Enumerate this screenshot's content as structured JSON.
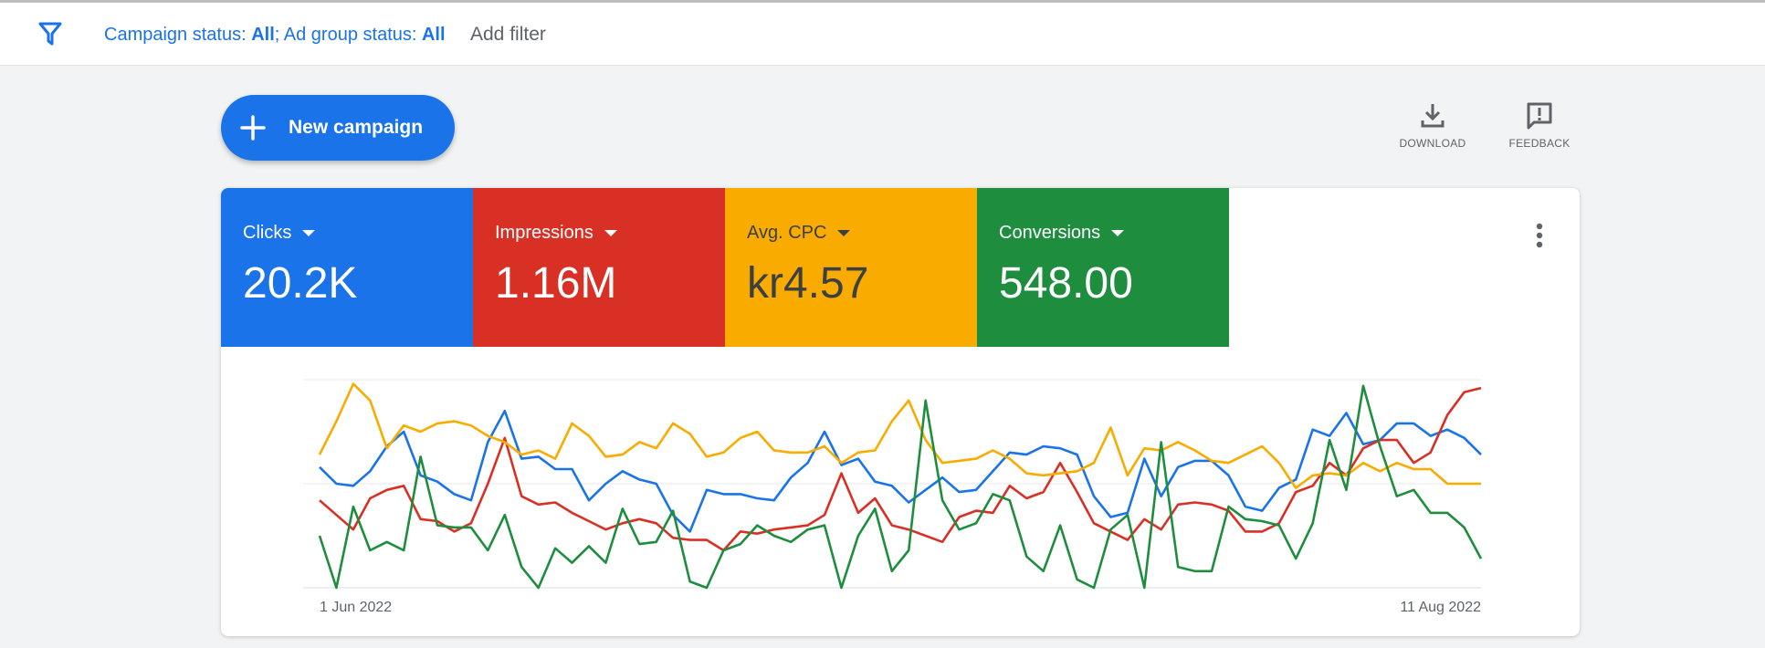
{
  "filter_bar": {
    "icon": "filter-icon",
    "campaign_status_label": "Campaign status: ",
    "campaign_status_value": "All",
    "separator": "; ",
    "ad_group_status_label": "Ad group status: ",
    "ad_group_status_value": "All",
    "add_filter": "Add filter"
  },
  "toolbar": {
    "new_campaign_label": "New campaign",
    "download_label": "DOWNLOAD",
    "feedback_label": "FEEDBACK"
  },
  "metrics": [
    {
      "label": "Clicks",
      "value": "20.2K",
      "color": "#1a73e8"
    },
    {
      "label": "Impressions",
      "value": "1.16M",
      "color": "#d93025"
    },
    {
      "label": "Avg. CPC",
      "value": "kr4.57",
      "color": "#f9ab00"
    },
    {
      "label": "Conversions",
      "value": "548.00",
      "color": "#1e8e3e"
    }
  ],
  "chart_data": {
    "type": "line",
    "x_start_label": "1 Jun 2022",
    "x_end_label": "11 Aug 2022",
    "grid": true,
    "y_normalized": true,
    "series": [
      {
        "color": "#1a73e8",
        "values": [
          0.58,
          0.5,
          0.49,
          0.56,
          0.68,
          0.75,
          0.54,
          0.51,
          0.45,
          0.42,
          0.7,
          0.85,
          0.62,
          0.63,
          0.57,
          0.57,
          0.42,
          0.5,
          0.56,
          0.52,
          0.5,
          0.35,
          0.27,
          0.47,
          0.45,
          0.45,
          0.43,
          0.42,
          0.53,
          0.6,
          0.75,
          0.59,
          0.62,
          0.51,
          0.49,
          0.41,
          0.47,
          0.53,
          0.46,
          0.47,
          0.56,
          0.65,
          0.64,
          0.68,
          0.67,
          0.64,
          0.44,
          0.34,
          0.36,
          0.62,
          0.44,
          0.58,
          0.61,
          0.61,
          0.54,
          0.39,
          0.37,
          0.48,
          0.52,
          0.76,
          0.73,
          0.84,
          0.69,
          0.71,
          0.79,
          0.79,
          0.73,
          0.76,
          0.72,
          0.64
        ]
      },
      {
        "color": "#d93025",
        "values": [
          0.42,
          0.35,
          0.28,
          0.43,
          0.47,
          0.49,
          0.33,
          0.32,
          0.27,
          0.31,
          0.5,
          0.72,
          0.44,
          0.4,
          0.41,
          0.36,
          0.32,
          0.28,
          0.31,
          0.33,
          0.31,
          0.24,
          0.23,
          0.23,
          0.18,
          0.27,
          0.26,
          0.28,
          0.29,
          0.3,
          0.35,
          0.55,
          0.36,
          0.43,
          0.3,
          0.28,
          0.25,
          0.22,
          0.34,
          0.37,
          0.36,
          0.49,
          0.43,
          0.46,
          0.6,
          0.46,
          0.31,
          0.27,
          0.23,
          0.33,
          0.28,
          0.4,
          0.41,
          0.4,
          0.37,
          0.27,
          0.27,
          0.31,
          0.46,
          0.49,
          0.6,
          0.54,
          0.67,
          0.71,
          0.71,
          0.6,
          0.65,
          0.83,
          0.94,
          0.96
        ]
      },
      {
        "color": "#f9ab00",
        "values": [
          0.64,
          0.8,
          0.98,
          0.9,
          0.67,
          0.78,
          0.75,
          0.79,
          0.8,
          0.78,
          0.73,
          0.7,
          0.64,
          0.66,
          0.62,
          0.79,
          0.73,
          0.63,
          0.64,
          0.7,
          0.67,
          0.79,
          0.74,
          0.63,
          0.65,
          0.72,
          0.75,
          0.66,
          0.65,
          0.65,
          0.68,
          0.6,
          0.65,
          0.66,
          0.8,
          0.9,
          0.71,
          0.6,
          0.61,
          0.62,
          0.66,
          0.62,
          0.55,
          0.54,
          0.55,
          0.56,
          0.6,
          0.77,
          0.54,
          0.67,
          0.66,
          0.7,
          0.66,
          0.61,
          0.6,
          0.64,
          0.68,
          0.6,
          0.48,
          0.54,
          0.55,
          0.54,
          0.6,
          0.56,
          0.6,
          0.57,
          0.57,
          0.5,
          0.5,
          0.5
        ]
      },
      {
        "color": "#1e8e3e",
        "values": [
          0.25,
          0.0,
          0.39,
          0.18,
          0.22,
          0.18,
          0.63,
          0.3,
          0.29,
          0.29,
          0.18,
          0.35,
          0.1,
          0.0,
          0.19,
          0.12,
          0.2,
          0.12,
          0.38,
          0.21,
          0.22,
          0.37,
          0.03,
          0.0,
          0.18,
          0.21,
          0.3,
          0.25,
          0.22,
          0.28,
          0.3,
          0.0,
          0.25,
          0.38,
          0.08,
          0.18,
          0.9,
          0.42,
          0.28,
          0.31,
          0.45,
          0.42,
          0.15,
          0.08,
          0.3,
          0.04,
          0.0,
          0.28,
          0.35,
          0.0,
          0.7,
          0.1,
          0.08,
          0.08,
          0.39,
          0.33,
          0.32,
          0.3,
          0.14,
          0.31,
          0.71,
          0.47,
          0.97,
          0.68,
          0.44,
          0.47,
          0.36,
          0.36,
          0.29,
          0.14
        ]
      }
    ]
  }
}
